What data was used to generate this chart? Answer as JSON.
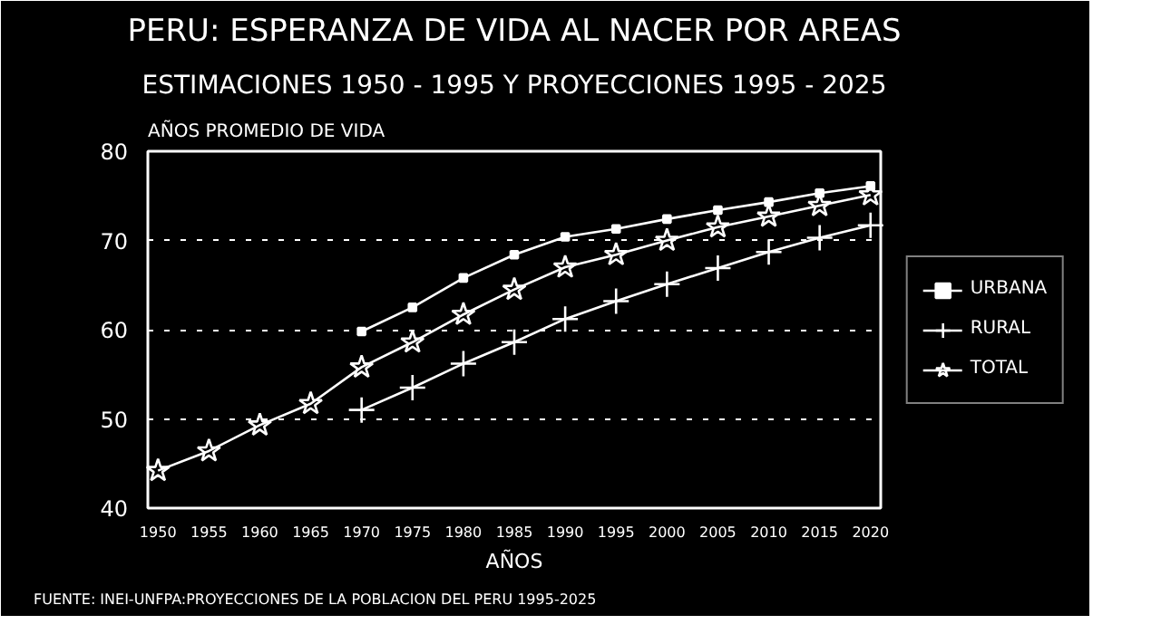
{
  "chart_data": {
    "type": "line",
    "title": "PERU: ESPERANZA DE VIDA AL NACER POR AREAS",
    "subtitle": "ESTIMACIONES 1950 - 1995 Y PROYECCIONES 1995 - 2025",
    "xlabel": "AÑOS",
    "ylabel": "AÑOS PROMEDIO DE VIDA",
    "annotations": [
      "FUENTE: INEI-UNFPA:PROYECCIONES DE LA POBLACION DEL PERU 1995-2025"
    ],
    "x": [
      1950,
      1955,
      1960,
      1965,
      1970,
      1975,
      1980,
      1985,
      1990,
      1995,
      2000,
      2005,
      2010,
      2015,
      2020
    ],
    "series": [
      {
        "name": "URBANA",
        "color": "#ffffff",
        "marker": "square",
        "values": [
          null,
          null,
          null,
          null,
          59.8,
          62.5,
          65.8,
          68.4,
          70.4,
          71.3,
          72.4,
          73.4,
          74.3,
          75.3,
          76.1
        ]
      },
      {
        "name": "RURAL",
        "color": "#ffffff",
        "marker": "cross",
        "values": [
          null,
          null,
          null,
          null,
          51.0,
          53.5,
          56.2,
          58.6,
          61.2,
          63.2,
          65.1,
          66.9,
          68.7,
          70.3,
          71.7
        ]
      },
      {
        "name": "TOTAL",
        "color": "#ffffff",
        "marker": "star",
        "values": [
          44.2,
          46.4,
          49.3,
          51.7,
          55.8,
          58.6,
          61.7,
          64.5,
          67.0,
          68.4,
          70.0,
          71.5,
          72.7,
          73.9,
          75.1
        ]
      }
    ],
    "xlim": [
      1949,
      2021
    ],
    "xticks": [
      1950,
      1955,
      1960,
      1965,
      1970,
      1975,
      1980,
      1985,
      1990,
      1995,
      2000,
      2005,
      2010,
      2015,
      2020
    ],
    "ylim": [
      40,
      80
    ],
    "yticks": [
      40,
      50,
      60,
      70,
      80
    ],
    "grid": "y",
    "legend": "right",
    "line_style": "solid"
  }
}
